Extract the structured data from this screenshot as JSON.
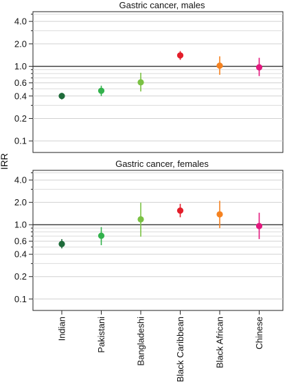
{
  "chart_data": {
    "type": "scatter",
    "ylabel": "IRR",
    "yscale": "log",
    "ylim": [
      0.07,
      5.4
    ],
    "reference_line": 1.0,
    "grid": "horizontal",
    "yticks": [
      {
        "value": 0.1,
        "label": "0.1"
      },
      {
        "value": 0.2,
        "label": "0.2"
      },
      {
        "value": 0.4,
        "label": "0.4"
      },
      {
        "value": 0.6,
        "label": "0.6"
      },
      {
        "value": 1.0,
        "label": "1.0"
      },
      {
        "value": 2.0,
        "label": "2.0"
      },
      {
        "value": 4.0,
        "label": "4.0"
      }
    ],
    "minor_yticks": [
      0.3,
      0.5,
      0.7,
      0.8,
      0.9,
      3.0,
      5.0
    ],
    "categories": [
      "Indian",
      "Pakistani",
      "Bangladeshi",
      "Black Caribbean",
      "Black African",
      "Chinese"
    ],
    "colors": [
      "#1e6b3a",
      "#33b24d",
      "#7ac143",
      "#e31e2a",
      "#f58220",
      "#e3177e"
    ],
    "panels": [
      {
        "title": "Gastric cancer, males",
        "estimates": [
          0.4,
          0.47,
          0.61,
          1.4,
          1.02,
          0.97
        ],
        "lower": [
          0.36,
          0.4,
          0.46,
          1.22,
          0.77,
          0.74
        ],
        "upper": [
          0.44,
          0.55,
          0.82,
          1.6,
          1.36,
          1.3
        ]
      },
      {
        "title": "Gastric cancer, females",
        "estimates": [
          0.55,
          0.71,
          1.18,
          1.55,
          1.38,
          0.96
        ],
        "lower": [
          0.48,
          0.53,
          0.69,
          1.26,
          0.9,
          0.64
        ],
        "upper": [
          0.64,
          0.93,
          1.98,
          1.91,
          2.1,
          1.45
        ]
      }
    ]
  }
}
